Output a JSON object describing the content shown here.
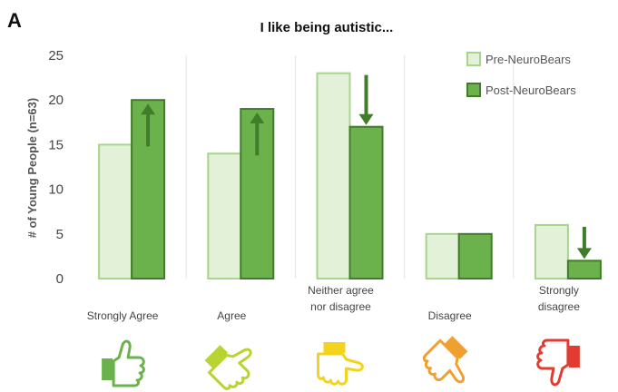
{
  "panel_label": "A",
  "chart_data": {
    "type": "bar",
    "title": "I like being autistic...",
    "ylabel": "# of Young People (n=63)",
    "xlabel": "",
    "ylim": [
      0,
      25
    ],
    "yticks": [
      0,
      5,
      10,
      15,
      20,
      25
    ],
    "grid": "vertical separators",
    "legend_position": "top-right",
    "categories": [
      [
        "Strongly Agree"
      ],
      [
        "Agree"
      ],
      [
        "Neither agree",
        "nor disagree"
      ],
      [
        "Disagree"
      ],
      [
        "Strongly",
        "disagree"
      ]
    ],
    "series": [
      {
        "name": "Pre-NeuroBears",
        "values": [
          15,
          14,
          23,
          5,
          6
        ],
        "color": "#e2f1d7",
        "edge": "#a8d48c"
      },
      {
        "name": "Post-NeuroBears",
        "values": [
          20,
          19,
          17,
          5,
          2
        ],
        "color": "#6cb24c",
        "edge": "#3f7d2a"
      }
    ],
    "change_arrows": [
      "up",
      "up",
      "down",
      "none",
      "down"
    ],
    "arrow_color": "#3f7d2a",
    "thumb_icons": [
      {
        "name": "thumbs-up-icon",
        "color": "#6cb24c",
        "rotation": 0
      },
      {
        "name": "thumbs-up-tilted-icon",
        "color": "#b8d432",
        "rotation": 45
      },
      {
        "name": "thumbs-sideways-icon",
        "color": "#f3d31d",
        "rotation": 90
      },
      {
        "name": "thumbs-down-tilted-icon",
        "color": "#f0a030",
        "rotation": 135
      },
      {
        "name": "thumbs-down-icon",
        "color": "#e03c31",
        "rotation": 180
      }
    ]
  }
}
